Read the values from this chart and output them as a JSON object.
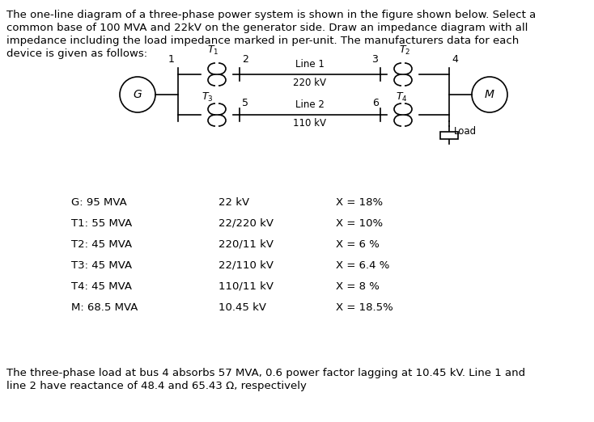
{
  "title_text": "The one-line diagram of a three-phase power system is shown in the figure shown below. Select a\ncommon base of 100 MVA and 22kV on the generator side. Draw an impedance diagram with all\nimpedance including the load impedance marked in per-unit. The manufacturers data for each\ndevice is given as follows:",
  "footer_text": "The three-phase load at bus 4 absorbs 57 MVA, 0.6 power factor lagging at 10.45 kV. Line 1 and\nline 2 have reactance of 48.4 and 65.43 Ω, respectively",
  "table_data": [
    [
      "G: 95 MVA",
      "22 kV",
      "X = 18%"
    ],
    [
      "T1: 55 MVA",
      "22/220 kV",
      "X = 10%"
    ],
    [
      "T2: 45 MVA",
      "220/11 kV",
      "X = 6 %"
    ],
    [
      "T3: 45 MVA",
      "22/110 kV",
      "X = 6.4 %"
    ],
    [
      "T4: 45 MVA",
      "110/11 kV",
      "X = 8 %"
    ],
    [
      "M: 68.5 MVA",
      "10.45 kV",
      "X = 18.5%"
    ]
  ],
  "bg_color": "#ffffff",
  "text_color": "#000000"
}
